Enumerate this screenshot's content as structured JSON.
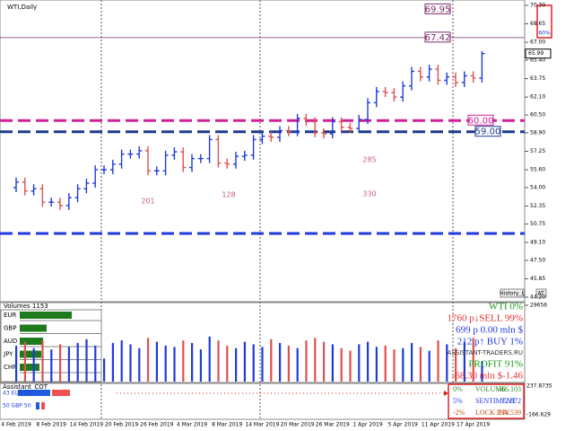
{
  "chart_data": [
    {
      "type": "ohlc",
      "title": "WTI,Daily",
      "categories": [
        "4 Feb 2019",
        null,
        null,
        null,
        "8 Feb 2019",
        null,
        null,
        null,
        "14 Feb 2019",
        null,
        null,
        null,
        "20 Feb 2019",
        null,
        null,
        null,
        "26 Feb 2019",
        null,
        null,
        null,
        "4 Mar 2019",
        null,
        null,
        null,
        "8 Mar 2019",
        null,
        null,
        null,
        "14 Mar 2019",
        null,
        null,
        null,
        "20 Mar 2019",
        null,
        null,
        null,
        "26 Mar 2019",
        null,
        null,
        null,
        "1 Apr 2019",
        null,
        null,
        null,
        "5 Apr 2019",
        null,
        null,
        null,
        "11 Apr 2019",
        null,
        null,
        null,
        "17 Apr 2019",
        null
      ],
      "open": [
        54.0,
        54.5,
        53.7,
        53.9,
        52.7,
        52.7,
        52.4,
        53.1,
        53.9,
        54.4,
        55.6,
        55.6,
        56.1,
        57.0,
        57.0,
        57.3,
        55.5,
        55.5,
        56.9,
        57.2,
        55.8,
        56.6,
        56.6,
        58.3,
        56.2,
        56.1,
        56.8,
        56.9,
        58.3,
        58.6,
        58.5,
        59.1,
        59.0,
        60.2,
        59.9,
        58.9,
        58.8,
        59.9,
        59.4,
        59.3,
        60.1,
        61.6,
        62.6,
        62.5,
        62.1,
        63.1,
        64.4,
        63.9,
        64.6,
        63.6,
        63.9,
        63.4,
        64.0,
        63.8
      ],
      "high": [
        54.9,
        54.9,
        54.3,
        54.3,
        53.1,
        53.1,
        53.5,
        54.3,
        54.8,
        56.0,
        56.0,
        56.5,
        57.4,
        57.4,
        57.7,
        57.7,
        55.9,
        57.3,
        57.6,
        57.6,
        57.0,
        57.0,
        58.7,
        58.7,
        56.6,
        57.2,
        57.3,
        58.7,
        59.0,
        59.0,
        59.5,
        59.5,
        60.6,
        60.6,
        60.3,
        59.3,
        60.3,
        60.3,
        59.8,
        60.5,
        62.0,
        63.0,
        63.0,
        62.9,
        63.5,
        64.8,
        64.8,
        65.0,
        65.0,
        64.3,
        64.3,
        64.4,
        64.4,
        66.2
      ],
      "low": [
        53.6,
        53.3,
        53.3,
        52.3,
        52.3,
        52.0,
        52.0,
        52.7,
        53.5,
        54.0,
        55.2,
        55.2,
        55.7,
        56.6,
        56.6,
        55.1,
        55.1,
        55.1,
        56.5,
        55.4,
        55.4,
        56.2,
        56.2,
        55.8,
        55.7,
        55.7,
        56.4,
        56.5,
        57.9,
        58.1,
        58.1,
        58.6,
        58.6,
        59.5,
        58.5,
        58.4,
        58.4,
        59.0,
        58.9,
        58.9,
        59.7,
        61.2,
        62.1,
        61.7,
        61.7,
        62.7,
        63.5,
        63.5,
        63.2,
        63.2,
        63.0,
        63.0,
        63.4,
        63.4
      ],
      "close": [
        54.5,
        53.7,
        53.9,
        52.7,
        52.7,
        52.4,
        53.1,
        53.9,
        54.4,
        55.6,
        55.6,
        56.1,
        57.0,
        57.0,
        57.3,
        55.5,
        55.5,
        56.9,
        57.2,
        55.8,
        56.6,
        56.6,
        58.3,
        56.2,
        56.1,
        56.8,
        56.9,
        58.3,
        58.6,
        58.5,
        59.1,
        59.0,
        60.2,
        59.9,
        58.9,
        58.8,
        59.9,
        59.4,
        59.3,
        60.1,
        61.6,
        62.6,
        62.5,
        62.1,
        63.1,
        64.4,
        63.9,
        64.6,
        63.6,
        63.9,
        63.4,
        64.0,
        63.8,
        65.99
      ],
      "up_color": "#1f3bdc",
      "down_color": "#e05050",
      "ylim": [
        44.2,
        70.3
      ],
      "yticks": [
        {
          "value": 70.3,
          "label": "70.30"
        },
        68.65,
        {
          "value": 67,
          "label": "67.00"
        },
        {
          "value": 65.4,
          "label": "65.40"
        },
        63.75,
        {
          "value": 62.1,
          "label": "62.10"
        },
        {
          "value": 60.5,
          "label": "60.50"
        },
        {
          "value": 58.9,
          "label": "58.90"
        },
        57.25,
        {
          "value": 55.6,
          "label": "55.60"
        },
        {
          "value": 54,
          "label": "54.00"
        },
        52.35,
        50.75,
        {
          "value": 49.1,
          "label": "49.10"
        },
        {
          "value": 47.5,
          "label": "47.50"
        },
        45.85,
        {
          "value": 44.2,
          "label": "44.20"
        }
      ],
      "levels": [
        {
          "value": 69.95,
          "label": "69.95",
          "color": "#7a2a6a"
        },
        {
          "value": 67.42,
          "label": "67.42",
          "color": "#7a2a6a"
        },
        {
          "value": 60,
          "label": "60.00",
          "color": "#d0209a"
        },
        {
          "value": 59,
          "label": "59.00",
          "color": "#1f3b8c"
        },
        {
          "value": 49.9,
          "color": "#1f3bdc"
        }
      ],
      "notes": [
        "201",
        "128",
        "285",
        "330"
      ],
      "badge": "60%",
      "buttons": [
        "History_L",
        "AT"
      ]
    },
    {
      "type": "bar",
      "title": "Volumes 1153",
      "values": [
        14000,
        15500,
        13000,
        16000,
        12500,
        14500,
        13500,
        15000,
        16500,
        14000,
        9000,
        15000,
        16000,
        14500,
        13000,
        17000,
        15500,
        14000,
        13500,
        16000,
        15000,
        12500,
        17500,
        16000,
        14000,
        13000,
        15500,
        14500,
        13500,
        16500,
        15000,
        14000,
        13000,
        16000,
        17000,
        15500,
        14500,
        13000,
        12000,
        14500,
        15500,
        13500,
        14000,
        12500,
        13000,
        15000,
        13500,
        12000,
        16000,
        14500,
        13000,
        15500,
        17000,
        8000
      ],
      "ylim": [
        0,
        29656
      ],
      "yticks": [
        29656
      ]
    }
  ],
  "currency_panel": {
    "currencies": [
      "EUR",
      "GBP",
      "AUD",
      "JPY",
      "CHF"
    ]
  },
  "info": {
    "lines": [
      "WTI 0%",
      "1760 p↓SELL 99%",
      "699 p   0.00 mln $",
      "212 p↑   BUY 1%",
      "ASSISTANT-TRADERS.RU",
      "PROFIT 91%",
      "-68.30 mln $-1.46"
    ]
  },
  "cot_panel": {
    "title": "Assistant_COT",
    "pairs": [
      "43 EUR 57",
      "50 GBP 50"
    ],
    "axis": [
      "237.8735",
      "-166.629"
    ],
    "table": [
      [
        "0%",
        "VOLUME",
        "366.103"
      ],
      [
        "5%",
        "SENTIMENT",
        "72.872"
      ],
      [
        "-2%",
        "LOCK INV",
        "136.539"
      ]
    ]
  }
}
